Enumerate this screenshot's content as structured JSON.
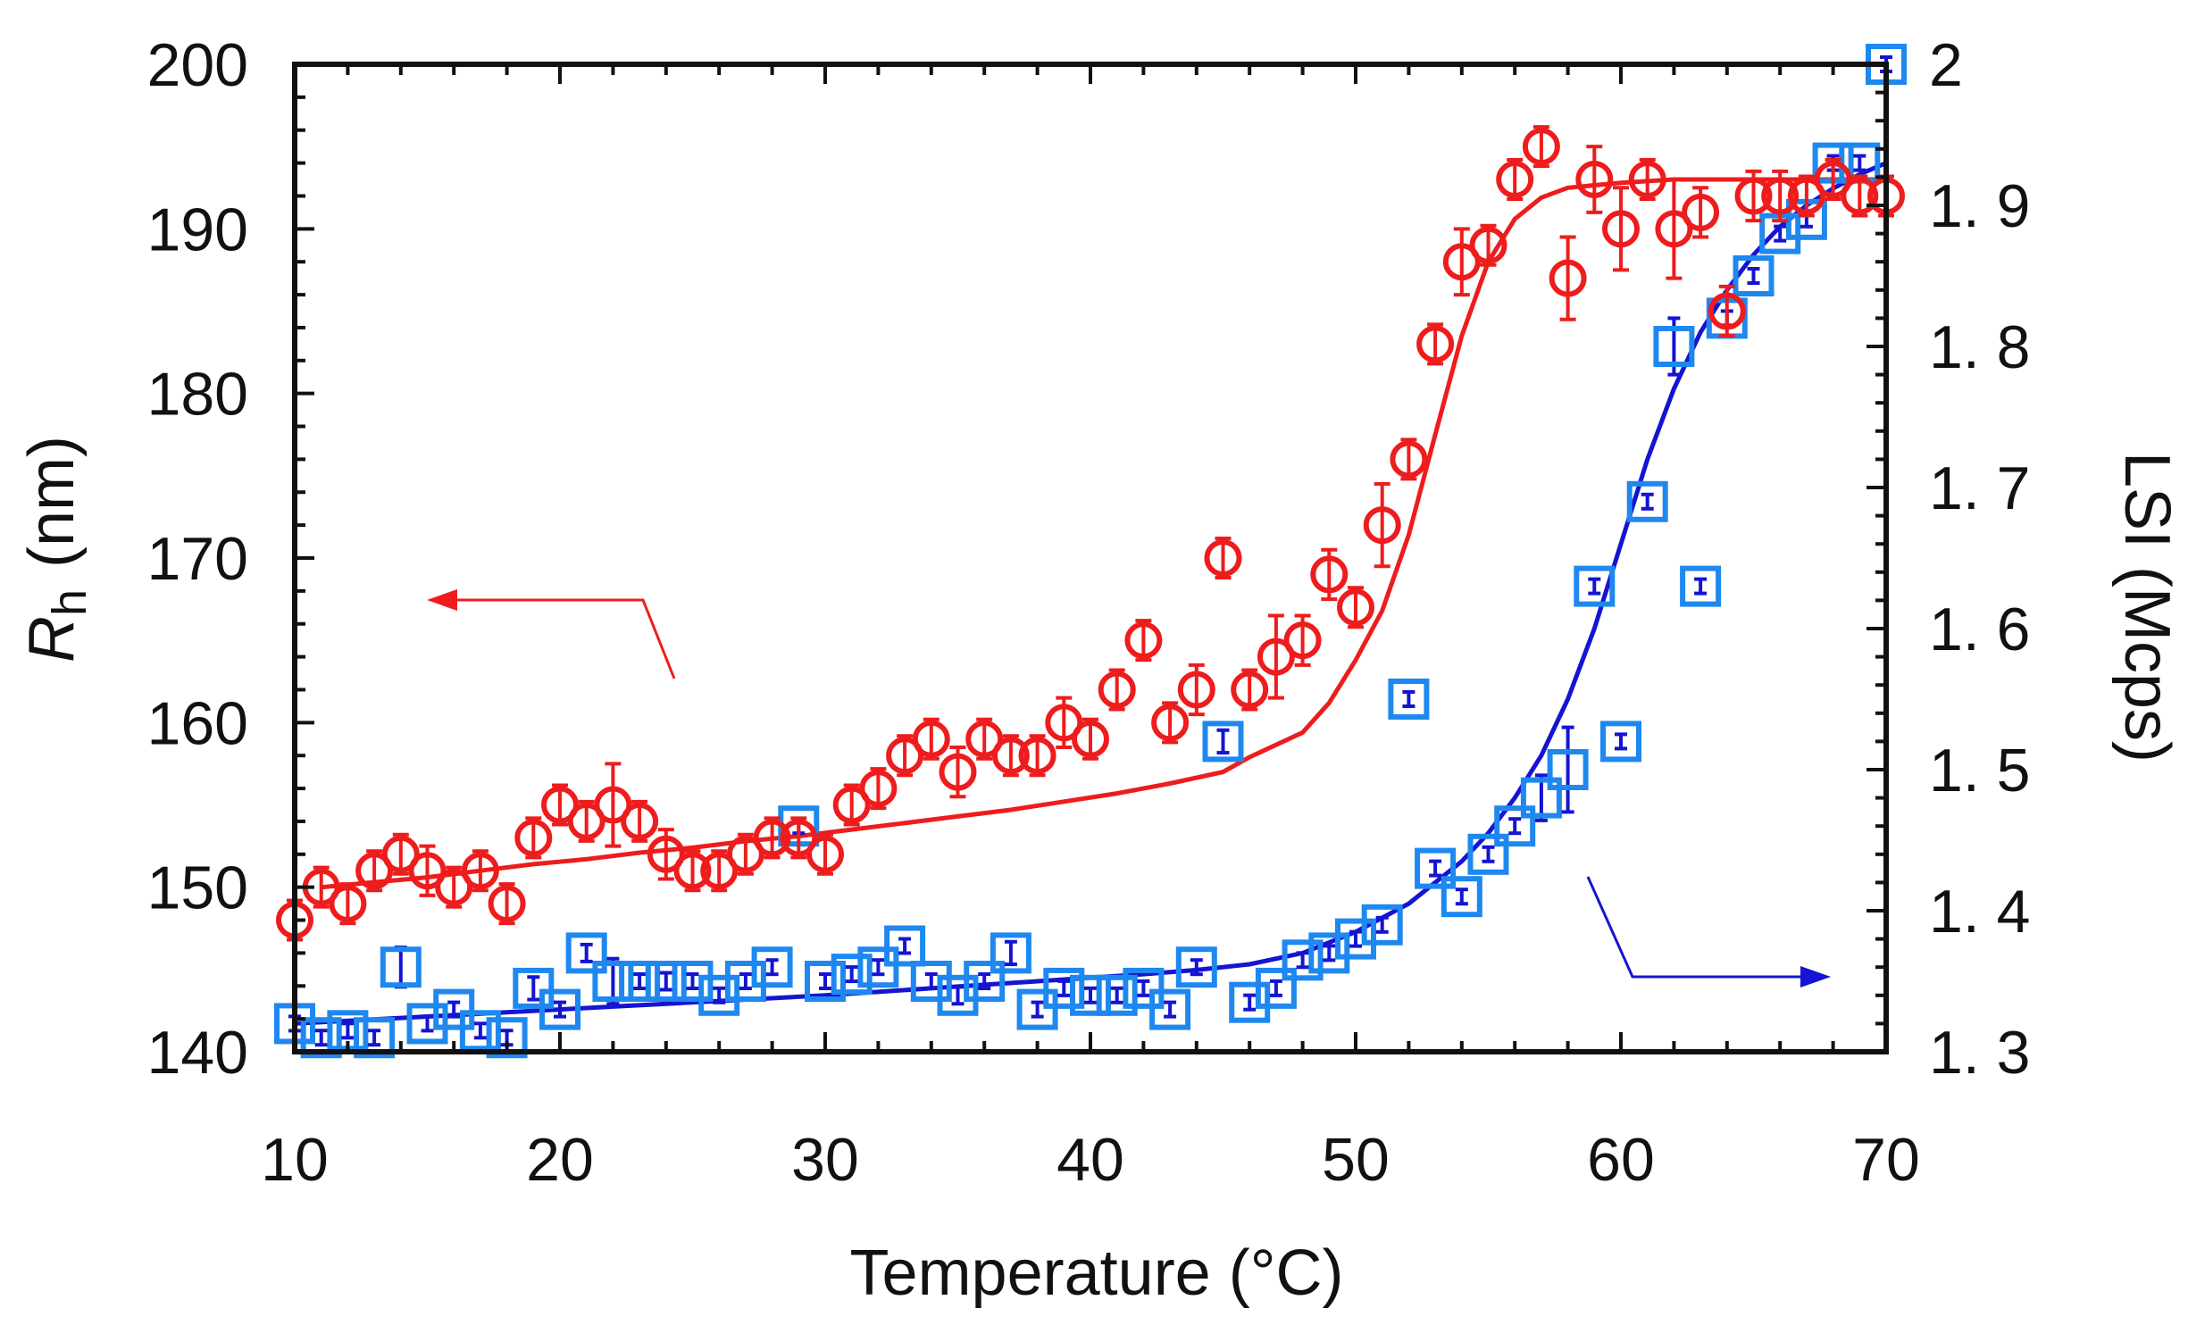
{
  "chart_data": {
    "type": "scatter",
    "title": "",
    "xlabel": "Temperature (°C)",
    "ylabel_left_main": "R",
    "ylabel_left_sub": "h",
    "ylabel_left_unit": "(nm)",
    "ylabel_right": "LSI (Mcps)",
    "xlim": [
      10,
      70
    ],
    "ylim_left": [
      140,
      200
    ],
    "ylim_right": [
      1.3,
      2.0
    ],
    "x_ticks": [
      10,
      20,
      30,
      40,
      50,
      60,
      70
    ],
    "y_left_ticks": [
      140,
      150,
      160,
      170,
      180,
      190,
      200
    ],
    "y_right_ticks": [
      1.3,
      1.4,
      1.5,
      1.6,
      1.7,
      1.8,
      1.9,
      2.0
    ],
    "y_right_tick_labels": [
      "1. 3",
      "1. 4",
      "1. 5",
      "1. 6",
      "1. 7",
      "1. 8",
      "1. 9",
      "2"
    ],
    "colors": {
      "rh": "#ee1c1c",
      "lsi_marker": "#1e88f0",
      "lsi_line": "#1414d2",
      "axis": "#111111"
    },
    "series": [
      {
        "name": "Rh",
        "axis": "left",
        "marker": "circle",
        "x": [
          10,
          11,
          12,
          13,
          14,
          15,
          16,
          17,
          18,
          19,
          20,
          21,
          22,
          23,
          24,
          25,
          26,
          27,
          28,
          29,
          30,
          31,
          32,
          33,
          34,
          35,
          36,
          37,
          38,
          39,
          40,
          41,
          42,
          43,
          44,
          45,
          46,
          47,
          48,
          49,
          50,
          51,
          52,
          53,
          54,
          55,
          56,
          57,
          58,
          59,
          60,
          61,
          62,
          63,
          64,
          65,
          66,
          67,
          68,
          69,
          70
        ],
        "y": [
          148,
          150,
          149,
          151,
          152,
          151,
          150,
          151,
          149,
          153,
          155,
          154,
          155,
          154,
          152,
          151,
          151,
          152,
          153,
          153,
          152,
          155,
          156,
          158,
          159,
          157,
          159,
          158,
          158,
          160,
          159,
          162,
          165,
          160,
          162,
          170,
          162,
          164,
          165,
          169,
          167,
          172,
          176,
          183,
          188,
          189,
          193,
          195,
          187,
          193,
          190,
          193,
          190,
          191,
          185,
          192,
          192,
          192,
          193,
          192,
          192
        ],
        "err": [
          1.0,
          0.8,
          0.8,
          0.8,
          1.0,
          1.5,
          0.8,
          0.8,
          0.8,
          0.8,
          0.8,
          0.8,
          2.5,
          1.0,
          1.5,
          0.8,
          0.8,
          0.8,
          0.8,
          1.0,
          0.8,
          0.8,
          0.8,
          0.8,
          0.8,
          1.5,
          0.8,
          0.8,
          0.8,
          1.5,
          0.8,
          0.8,
          0.8,
          0.8,
          1.5,
          0.8,
          1.0,
          2.5,
          1.5,
          1.5,
          0.8,
          2.5,
          0.8,
          0.8,
          2.0,
          1.0,
          1.0,
          1.0,
          2.5,
          2.0,
          2.5,
          0.8,
          3.0,
          1.5,
          1.5,
          1.5,
          1.5,
          1.0,
          1.0,
          1.0,
          1.0
        ],
        "fit_y": [
          150.0,
          150.3,
          150.6,
          151.0,
          151.4,
          151.7,
          152.1,
          152.4,
          152.8,
          153.1,
          153.5,
          153.9,
          154.3,
          154.7,
          155.2,
          155.7,
          156.3,
          157.0,
          157.9,
          159.4,
          161.2,
          163.8,
          166.8,
          171.4,
          177.5,
          183.5,
          188.0,
          190.6,
          191.9,
          192.5,
          192.8,
          193.0,
          193.0
        ],
        "fit_x": [
          11,
          13,
          15,
          17,
          19,
          21,
          23,
          25,
          27,
          29,
          31,
          33,
          35,
          37,
          39,
          41,
          43,
          45,
          46,
          48,
          49,
          50,
          51,
          52,
          53,
          54,
          55,
          56,
          57,
          58,
          60,
          62,
          70
        ]
      },
      {
        "name": "LSI",
        "axis": "right",
        "marker": "square",
        "x": [
          10,
          11,
          12,
          13,
          14,
          15,
          16,
          17,
          18,
          19,
          20,
          21,
          22,
          23,
          24,
          25,
          26,
          27,
          28,
          29,
          30,
          31,
          32,
          33,
          34,
          35,
          36,
          37,
          38,
          39,
          40,
          41,
          42,
          43,
          44,
          45,
          46,
          47,
          48,
          49,
          50,
          51,
          52,
          53,
          54,
          55,
          56,
          57,
          58,
          59,
          60,
          61,
          62,
          63,
          64,
          65,
          66,
          67,
          68,
          69,
          70
        ],
        "y": [
          1.32,
          1.31,
          1.315,
          1.31,
          1.36,
          1.32,
          1.33,
          1.315,
          1.31,
          1.345,
          1.33,
          1.37,
          1.35,
          1.35,
          1.35,
          1.35,
          1.34,
          1.35,
          1.36,
          1.46,
          1.35,
          1.355,
          1.36,
          1.375,
          1.35,
          1.34,
          1.35,
          1.37,
          1.33,
          1.345,
          1.34,
          1.34,
          1.345,
          1.33,
          1.36,
          1.52,
          1.335,
          1.345,
          1.365,
          1.37,
          1.38,
          1.39,
          1.55,
          1.43,
          1.41,
          1.44,
          1.46,
          1.48,
          1.5,
          1.63,
          1.52,
          1.69,
          1.8,
          1.63,
          1.82,
          1.85,
          1.88,
          1.89,
          1.93,
          1.93,
          2.0
        ],
        "err": [
          0.004,
          0.004,
          0.004,
          0.004,
          0.014,
          0.004,
          0.004,
          0.004,
          0.004,
          0.008,
          0.004,
          0.006,
          0.016,
          0.004,
          0.006,
          0.004,
          0.004,
          0.004,
          0.004,
          0.004,
          0.004,
          0.004,
          0.004,
          0.004,
          0.004,
          0.006,
          0.004,
          0.008,
          0.004,
          0.004,
          0.004,
          0.004,
          0.004,
          0.004,
          0.004,
          0.008,
          0.004,
          0.004,
          0.004,
          0.004,
          0.004,
          0.004,
          0.004,
          0.004,
          0.004,
          0.004,
          0.004,
          0.016,
          0.03,
          0.004,
          0.004,
          0.004,
          0.02,
          0.004,
          0.004,
          0.004,
          0.004,
          0.004,
          0.004,
          0.004,
          0.004
        ],
        "fit_x": [
          10,
          14,
          18,
          22,
          26,
          30,
          34,
          38,
          42,
          44,
          46,
          48,
          50,
          52,
          54,
          55,
          56,
          57,
          58,
          59,
          60,
          61,
          62,
          63,
          64,
          65,
          66,
          67,
          68,
          69,
          70
        ],
        "fit_y": [
          1.32,
          1.324,
          1.328,
          1.332,
          1.336,
          1.34,
          1.345,
          1.35,
          1.355,
          1.358,
          1.362,
          1.37,
          1.385,
          1.405,
          1.435,
          1.455,
          1.48,
          1.51,
          1.55,
          1.6,
          1.66,
          1.72,
          1.77,
          1.81,
          1.84,
          1.865,
          1.885,
          1.9,
          1.912,
          1.922,
          1.93
        ]
      }
    ],
    "annotations": [
      {
        "text": "arrow pointing left toward Rh axis",
        "color": "#ee1c1c"
      },
      {
        "text": "arrow pointing right toward LSI axis",
        "color": "#1414d2"
      }
    ]
  }
}
